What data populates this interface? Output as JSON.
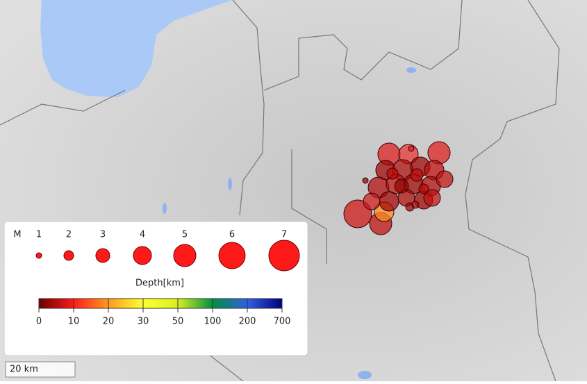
{
  "legend": {
    "magnitude_label": "M",
    "magnitudes": [
      1,
      2,
      3,
      4,
      5,
      6,
      7
    ],
    "depth_title": "Depth[km]",
    "depth_ticks": [
      0,
      10,
      20,
      30,
      50,
      100,
      200,
      700
    ]
  },
  "scale_bar": "20 km"
}
